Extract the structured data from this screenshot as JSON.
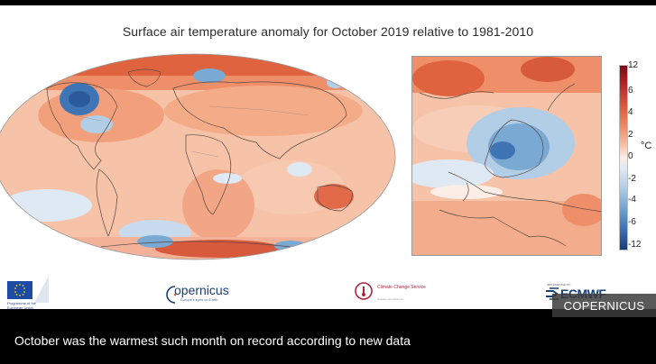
{
  "figure": {
    "title": "Surface air temperature anomaly for October 2019 relative to 1981-2010",
    "colorbar": {
      "unit": "°C",
      "ticks": [
        "12",
        "6",
        "4",
        "2",
        "0",
        "-2",
        "-4",
        "-6",
        "-12"
      ],
      "colors": {
        "max": "#7a0c15",
        "warm": "#e26a48",
        "neutral": "#fbeee6",
        "cool": "#7aa9d3",
        "min": "#193a78"
      }
    },
    "panels": [
      "world-map",
      "europe-map"
    ]
  },
  "logos": {
    "eu": {
      "text": "Programme of the European Union",
      "icon": "eu-flag-icon"
    },
    "copernicus": {
      "name": "opernicus",
      "tagline": "Europe's eyes on Earth",
      "icon": "copernicus-c-icon"
    },
    "c3s": {
      "name": "Climate Change Service",
      "tagline": "climate.copernicus.eu",
      "icon": "c3s-icon"
    },
    "ecmwf": {
      "pre": "IMPLEMENTED BY",
      "name": "ECMWF",
      "icon": "ecmwf-arrows-icon"
    }
  },
  "credit": "COPERNICUS",
  "caption": "October was the warmest such month on record according to new data"
}
